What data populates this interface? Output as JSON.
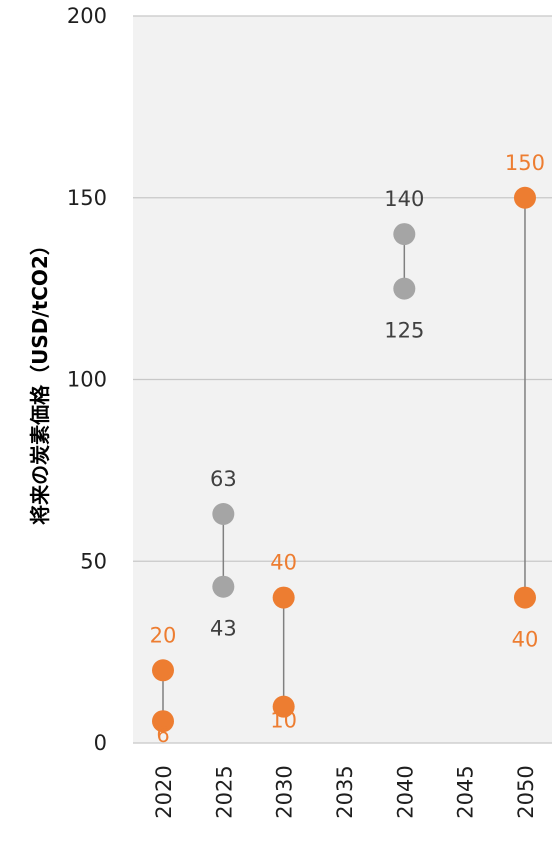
{
  "chart_data": {
    "type": "scatter",
    "title": "",
    "ylabel": "将来の炭素価格（USD/tCO2）",
    "xlabel": "",
    "x_ticks": [
      "2020",
      "2025",
      "2030",
      "2035",
      "2040",
      "2045",
      "2050"
    ],
    "ylim": [
      0,
      200
    ],
    "y_ticks": [
      0,
      50,
      100,
      150,
      200
    ],
    "grid": true,
    "legend": "none",
    "colors": {
      "orange": "#ed7d31",
      "gray": "#a5a5a5",
      "plot_bg": "#f2f2f2",
      "range_line": "#808080",
      "gridline": "#c8c8c8"
    },
    "ranges": [
      {
        "x": "2020",
        "low": 6,
        "high": 20,
        "color": "orange",
        "low_label": "6",
        "high_label": "20"
      },
      {
        "x": "2025",
        "low": 43,
        "high": 63,
        "color": "gray",
        "low_label": "43",
        "high_label": "63"
      },
      {
        "x": "2030",
        "low": 10,
        "high": 40,
        "color": "orange",
        "low_label": "10",
        "high_label": "40"
      },
      {
        "x": "2040",
        "low": 125,
        "high": 140,
        "color": "gray",
        "low_label": "125",
        "high_label": "140"
      },
      {
        "x": "2050",
        "low": 40,
        "high": 150,
        "color": "orange",
        "low_label": "40",
        "high_label": "150"
      }
    ]
  }
}
